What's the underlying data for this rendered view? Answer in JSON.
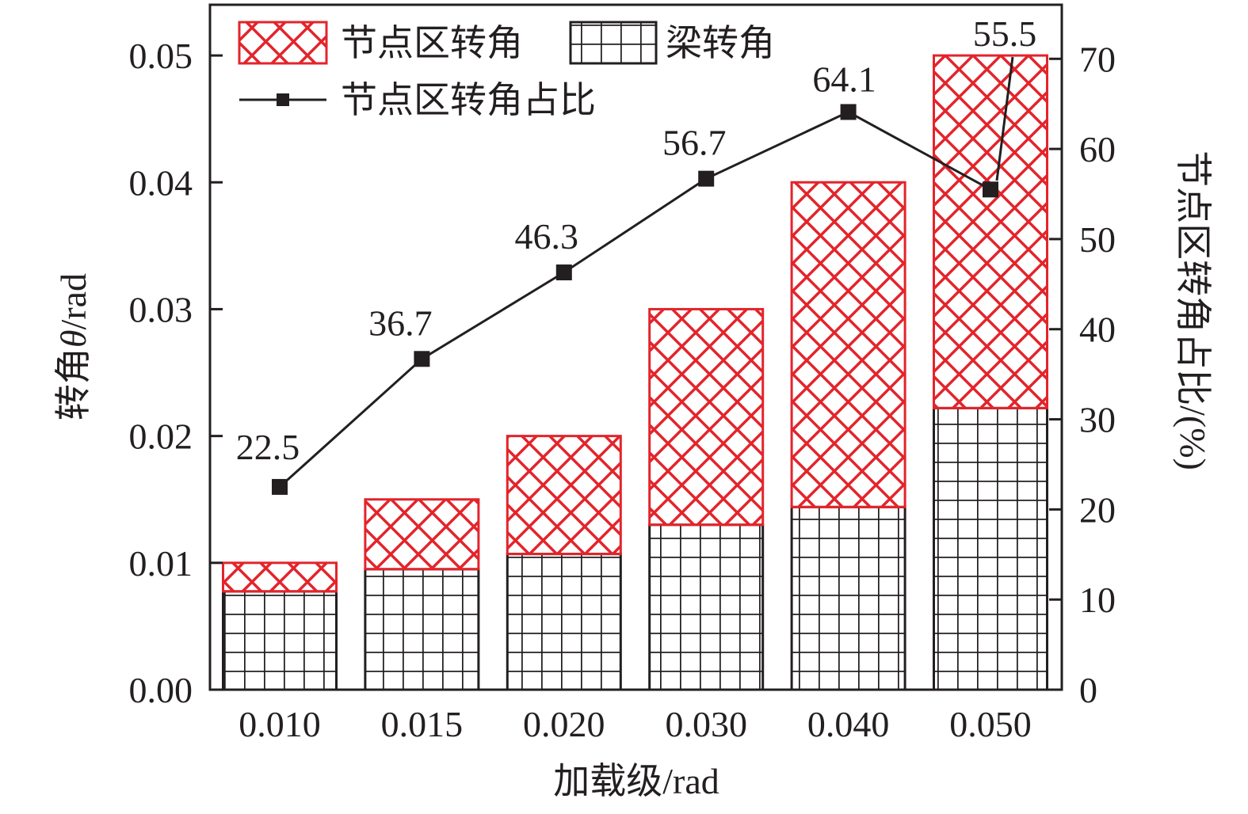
{
  "chart_data": {
    "type": "bar",
    "stacked": true,
    "title": "",
    "xlabel": "加载级/rad",
    "ylabel": "转角θ/rad",
    "ylabel_parts": [
      "转角",
      "θ",
      "/rad"
    ],
    "y2label": "节点区转角占比/(%)",
    "categories": [
      "0.010",
      "0.015",
      "0.020",
      "0.030",
      "0.040",
      "0.050"
    ],
    "ylim": [
      0,
      0.054
    ],
    "yticks": [
      "0.00",
      "0.01",
      "0.02",
      "0.03",
      "0.04",
      "0.05"
    ],
    "y2lim": [
      0,
      76
    ],
    "y2ticks": [
      "0",
      "10",
      "20",
      "30",
      "40",
      "50",
      "60",
      "70"
    ],
    "series": [
      {
        "name": "梁转角",
        "type": "bar",
        "axis": "left",
        "pattern": "grid",
        "color": "#231f20",
        "values": [
          0.00775,
          0.0095,
          0.0107,
          0.013,
          0.0144,
          0.0222
        ]
      },
      {
        "name": "节点区转角",
        "type": "bar",
        "axis": "left",
        "pattern": "crosshatch",
        "color": "#e3242b",
        "values": [
          0.00225,
          0.0055,
          0.0093,
          0.017,
          0.0256,
          0.0278
        ]
      },
      {
        "name": "节点区转角占比",
        "type": "line",
        "axis": "right",
        "marker": "square",
        "color": "#231f20",
        "values": [
          22.5,
          36.7,
          46.3,
          56.7,
          64.1,
          55.5
        ],
        "labels": [
          "22.5",
          "36.7",
          "46.3",
          "56.7",
          "64.1",
          "55.5"
        ]
      }
    ],
    "legend": {
      "placement": "top-left",
      "entries": [
        "节点区转角",
        "梁转角",
        "节点区转角占比"
      ]
    },
    "grid": false
  }
}
